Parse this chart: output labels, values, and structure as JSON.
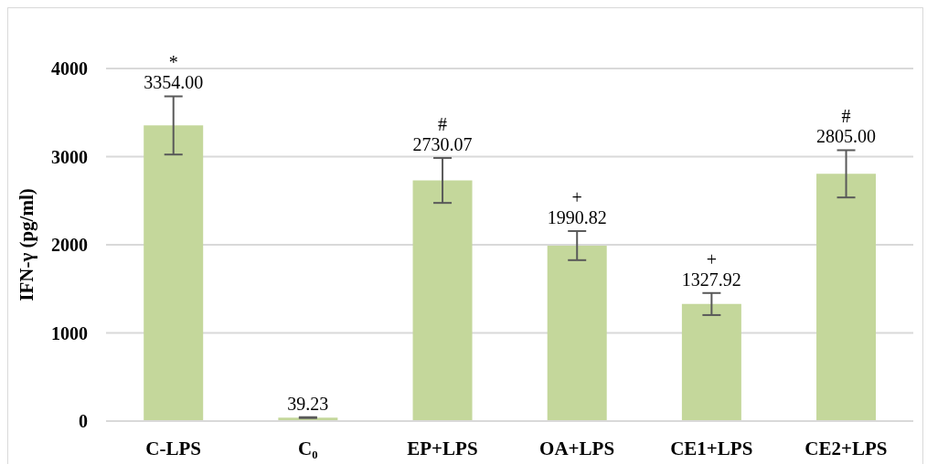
{
  "chart_data": {
    "type": "bar",
    "ylabel": "IFN-γ (pg/ml)",
    "categories": [
      "C-LPS",
      "C₀",
      "EP+LPS",
      "OA+LPS",
      "CE1+LPS",
      "CE2+LPS"
    ],
    "values": [
      3354.0,
      39.23,
      2730.07,
      1990.82,
      1327.92,
      2805.0
    ],
    "errors": [
      330,
      5,
      255,
      165,
      125,
      268
    ],
    "color": "#c4d79b",
    "value_labels": [
      "3354.00",
      "39.23",
      "2730.07",
      "1990.82",
      "1327.92",
      "2805.00"
    ],
    "ylim": [
      0,
      4000
    ],
    "yticks": [
      0,
      1000,
      2000,
      3000,
      4000
    ],
    "grid": "y",
    "annotations": [
      {
        "text": "*",
        "x": "C-LPS",
        "y": 3354
      },
      {
        "text": "#",
        "x": "EP+LPS",
        "y": 2730.07
      },
      {
        "text": "+",
        "x": "OA+LPS",
        "y": 1990.82
      },
      {
        "text": "+",
        "x": "CE1+LPS",
        "y": 1327.92
      },
      {
        "text": "#",
        "x": "CE2+LPS",
        "y": 2805
      }
    ]
  }
}
